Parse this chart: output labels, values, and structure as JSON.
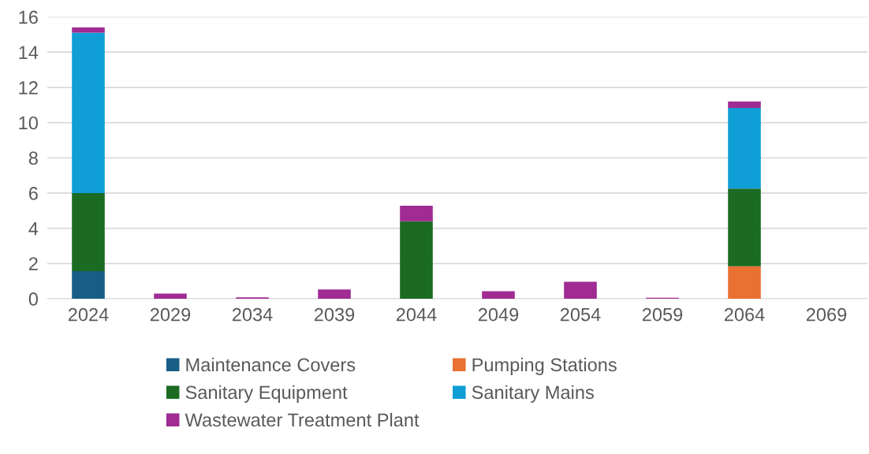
{
  "chart_data": {
    "type": "bar",
    "stacked": true,
    "categories": [
      "2024",
      "2029",
      "2034",
      "2039",
      "2044",
      "2049",
      "2054",
      "2059",
      "2064",
      "2069"
    ],
    "series": [
      {
        "name": "Maintenance Covers",
        "color": "#175e84",
        "values": [
          1.57,
          0,
          0,
          0,
          0,
          0,
          0,
          0,
          0,
          0
        ]
      },
      {
        "name": "Pumping Stations",
        "color": "#e97132",
        "values": [
          0,
          0,
          0,
          0,
          0,
          0,
          0,
          0,
          1.85,
          0
        ]
      },
      {
        "name": "Sanitary Equipment",
        "color": "#1b6b23",
        "values": [
          4.43,
          0,
          0,
          0,
          4.4,
          0,
          0,
          0,
          4.4,
          0
        ]
      },
      {
        "name": "Sanitary Mains",
        "color": "#0f9ed5",
        "values": [
          9.1,
          0,
          0,
          0,
          0,
          0,
          0,
          0,
          4.58,
          0
        ]
      },
      {
        "name": "Wastewater Treatment Plant",
        "color": "#a02b93",
        "values": [
          0.31,
          0.29,
          0.08,
          0.53,
          0.88,
          0.42,
          0.96,
          0.06,
          0.37,
          0
        ]
      }
    ],
    "ylim": [
      0,
      16
    ],
    "yticks": [
      0,
      2,
      4,
      6,
      8,
      10,
      12,
      14,
      16
    ],
    "grid": "y",
    "legend": "bottom"
  }
}
